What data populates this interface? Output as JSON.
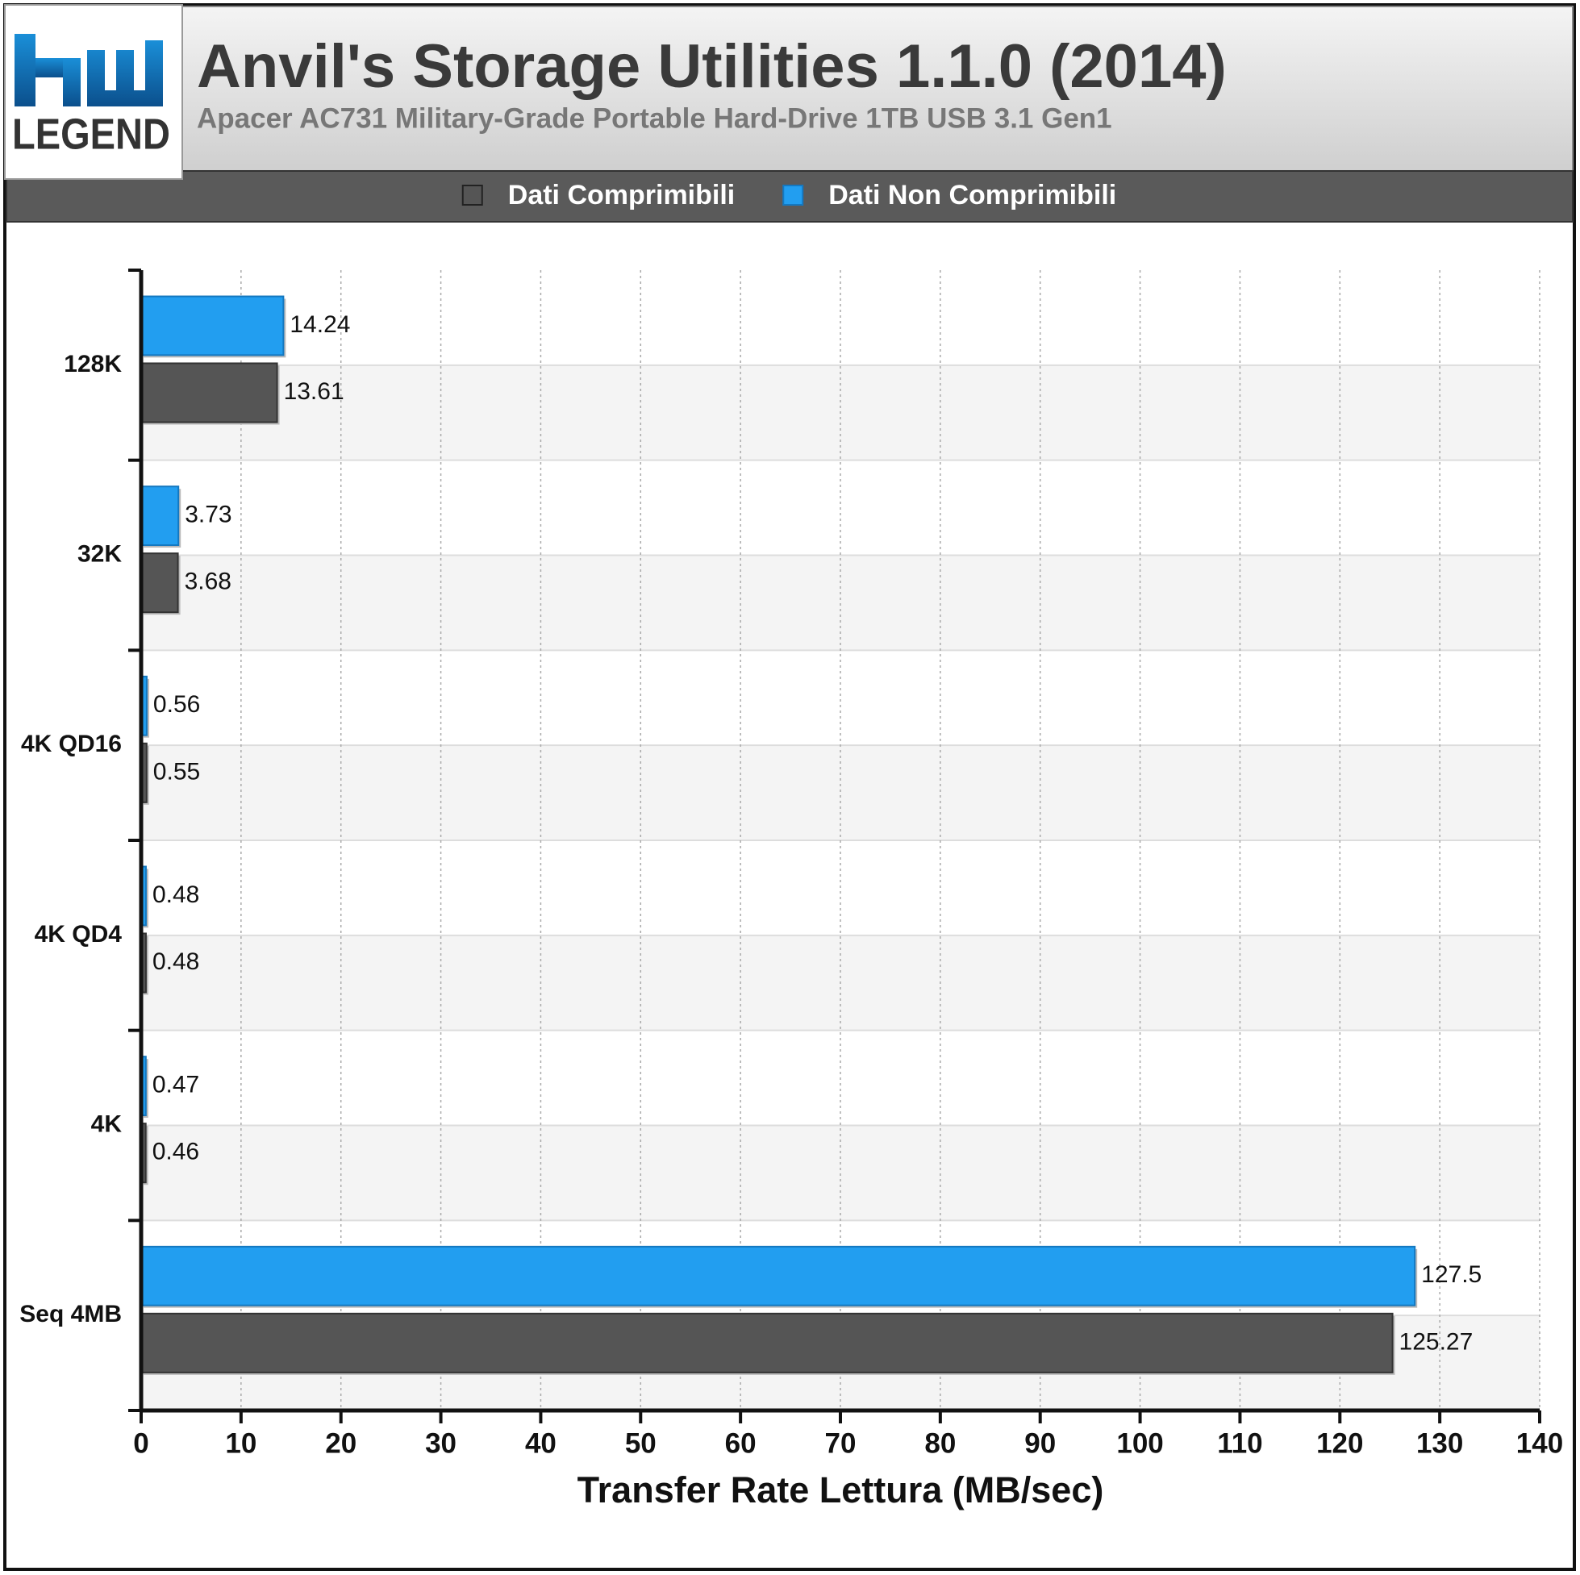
{
  "chart_data": {
    "type": "hbar",
    "title": "Anvil's Storage Utilities 1.1.0 (2014)",
    "subtitle": "Apacer AC731 Military-Grade Portable Hard-Drive 1TB USB 3.1 Gen1",
    "logo_text": "LEGEND",
    "xlabel": "Transfer Rate Lettura (MB/sec)",
    "categories": [
      "128K",
      "32K",
      "4K QD16",
      "4K QD4",
      "4K",
      "Seq 4MB"
    ],
    "series": [
      {
        "name": "Dati Comprimibili",
        "color": "#555555",
        "values": [
          13.61,
          3.68,
          0.55,
          0.48,
          0.46,
          125.27
        ]
      },
      {
        "name": "Dati Non Comprimibili",
        "color": "#229ef0",
        "values": [
          14.24,
          3.73,
          0.56,
          0.48,
          0.47,
          127.5
        ]
      }
    ],
    "xlim": [
      0,
      140
    ],
    "xticks": [
      0,
      10,
      20,
      30,
      40,
      50,
      60,
      70,
      80,
      90,
      100,
      110,
      120,
      130,
      140
    ],
    "grid": true
  }
}
